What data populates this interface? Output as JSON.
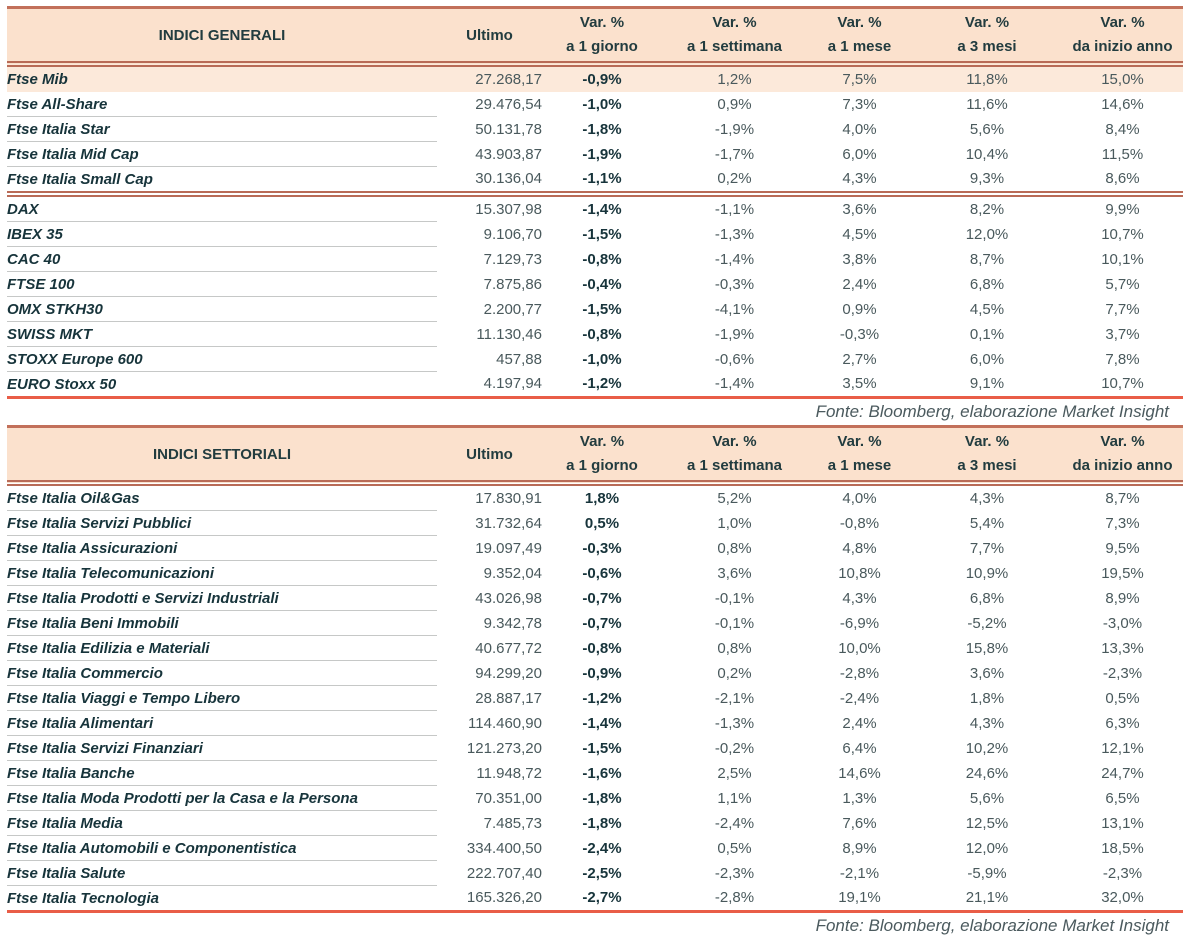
{
  "colors": {
    "header_bg": "#fbe1cd",
    "highlight_row_bg": "#fce9da",
    "rule_salmon": "#b96b57",
    "rule_orange_red": "#e95d47",
    "text_dark_teal": "#17343b",
    "text_gray_teal": "#49595c"
  },
  "tables": [
    {
      "title": "INDICI GENERALI",
      "col_ultimo": "Ultimo",
      "var_cols": [
        {
          "l1": "Var. %",
          "l2": "a 1 giorno"
        },
        {
          "l1": "Var. %",
          "l2": "a 1 settimana"
        },
        {
          "l1": "Var. %",
          "l2": "a 1 mese"
        },
        {
          "l1": "Var. %",
          "l2": "a 3 mesi"
        },
        {
          "l1": "Var. %",
          "l2": "da inizio anno"
        }
      ],
      "highlight_first_row": true,
      "separator_after_index": 4,
      "rows": [
        {
          "name": "Ftse Mib",
          "ultimo": "27.268,17",
          "d1": "-0,9%",
          "w1": "1,2%",
          "m1": "7,5%",
          "m3": "11,8%",
          "ytd": "15,0%"
        },
        {
          "name": "Ftse All-Share",
          "ultimo": "29.476,54",
          "d1": "-1,0%",
          "w1": "0,9%",
          "m1": "7,3%",
          "m3": "11,6%",
          "ytd": "14,6%"
        },
        {
          "name": "Ftse Italia Star",
          "ultimo": "50.131,78",
          "d1": "-1,8%",
          "w1": "-1,9%",
          "m1": "4,0%",
          "m3": "5,6%",
          "ytd": "8,4%"
        },
        {
          "name": "Ftse Italia Mid Cap",
          "ultimo": "43.903,87",
          "d1": "-1,9%",
          "w1": "-1,7%",
          "m1": "6,0%",
          "m3": "10,4%",
          "ytd": "11,5%"
        },
        {
          "name": "Ftse Italia Small Cap",
          "ultimo": "30.136,04",
          "d1": "-1,1%",
          "w1": "0,2%",
          "m1": "4,3%",
          "m3": "9,3%",
          "ytd": "8,6%"
        },
        {
          "name": "DAX",
          "ultimo": "15.307,98",
          "d1": "-1,4%",
          "w1": "-1,1%",
          "m1": "3,6%",
          "m3": "8,2%",
          "ytd": "9,9%"
        },
        {
          "name": "IBEX 35",
          "ultimo": "9.106,70",
          "d1": "-1,5%",
          "w1": "-1,3%",
          "m1": "4,5%",
          "m3": "12,0%",
          "ytd": "10,7%"
        },
        {
          "name": "CAC 40",
          "ultimo": "7.129,73",
          "d1": "-0,8%",
          "w1": "-1,4%",
          "m1": "3,8%",
          "m3": "8,7%",
          "ytd": "10,1%"
        },
        {
          "name": "FTSE 100",
          "ultimo": "7.875,86",
          "d1": "-0,4%",
          "w1": "-0,3%",
          "m1": "2,4%",
          "m3": "6,8%",
          "ytd": "5,7%"
        },
        {
          "name": "OMX STKH30",
          "ultimo": "2.200,77",
          "d1": "-1,5%",
          "w1": "-4,1%",
          "m1": "0,9%",
          "m3": "4,5%",
          "ytd": "7,7%"
        },
        {
          "name": "SWISS MKT",
          "ultimo": "11.130,46",
          "d1": "-0,8%",
          "w1": "-1,9%",
          "m1": "-0,3%",
          "m3": "0,1%",
          "ytd": "3,7%"
        },
        {
          "name": "STOXX Europe 600",
          "ultimo": "457,88",
          "d1": "-1,0%",
          "w1": "-0,6%",
          "m1": "2,7%",
          "m3": "6,0%",
          "ytd": "7,8%"
        },
        {
          "name": "EURO Stoxx 50",
          "ultimo": "4.197,94",
          "d1": "-1,2%",
          "w1": "-1,4%",
          "m1": "3,5%",
          "m3": "9,1%",
          "ytd": "10,7%"
        }
      ],
      "source": "Fonte: Bloomberg, elaborazione Market Insight"
    },
    {
      "title": "INDICI SETTORIALI",
      "col_ultimo": "Ultimo",
      "var_cols": [
        {
          "l1": "Var. %",
          "l2": "a 1 giorno"
        },
        {
          "l1": "Var. %",
          "l2": "a 1 settimana"
        },
        {
          "l1": "Var. %",
          "l2": "a 1 mese"
        },
        {
          "l1": "Var. %",
          "l2": "a 3 mesi"
        },
        {
          "l1": "Var. %",
          "l2": "da inizio anno"
        }
      ],
      "highlight_first_row": false,
      "separator_after_index": null,
      "rows": [
        {
          "name": "Ftse Italia Oil&Gas",
          "ultimo": "17.830,91",
          "d1": "1,8%",
          "w1": "5,2%",
          "m1": "4,0%",
          "m3": "4,3%",
          "ytd": "8,7%"
        },
        {
          "name": "Ftse Italia Servizi Pubblici",
          "ultimo": "31.732,64",
          "d1": "0,5%",
          "w1": "1,0%",
          "m1": "-0,8%",
          "m3": "5,4%",
          "ytd": "7,3%"
        },
        {
          "name": "Ftse Italia Assicurazioni",
          "ultimo": "19.097,49",
          "d1": "-0,3%",
          "w1": "0,8%",
          "m1": "4,8%",
          "m3": "7,7%",
          "ytd": "9,5%"
        },
        {
          "name": "Ftse Italia Telecomunicazioni",
          "ultimo": "9.352,04",
          "d1": "-0,6%",
          "w1": "3,6%",
          "m1": "10,8%",
          "m3": "10,9%",
          "ytd": "19,5%"
        },
        {
          "name": "Ftse Italia Prodotti e Servizi Industriali",
          "ultimo": "43.026,98",
          "d1": "-0,7%",
          "w1": "-0,1%",
          "m1": "4,3%",
          "m3": "6,8%",
          "ytd": "8,9%"
        },
        {
          "name": "Ftse Italia Beni Immobili",
          "ultimo": "9.342,78",
          "d1": "-0,7%",
          "w1": "-0,1%",
          "m1": "-6,9%",
          "m3": "-5,2%",
          "ytd": "-3,0%"
        },
        {
          "name": "Ftse Italia Edilizia e Materiali",
          "ultimo": "40.677,72",
          "d1": "-0,8%",
          "w1": "0,8%",
          "m1": "10,0%",
          "m3": "15,8%",
          "ytd": "13,3%"
        },
        {
          "name": "Ftse Italia Commercio",
          "ultimo": "94.299,20",
          "d1": "-0,9%",
          "w1": "0,2%",
          "m1": "-2,8%",
          "m3": "3,6%",
          "ytd": "-2,3%"
        },
        {
          "name": "Ftse Italia Viaggi e Tempo Libero",
          "ultimo": "28.887,17",
          "d1": "-1,2%",
          "w1": "-2,1%",
          "m1": "-2,4%",
          "m3": "1,8%",
          "ytd": "0,5%"
        },
        {
          "name": "Ftse Italia Alimentari",
          "ultimo": "114.460,90",
          "d1": "-1,4%",
          "w1": "-1,3%",
          "m1": "2,4%",
          "m3": "4,3%",
          "ytd": "6,3%"
        },
        {
          "name": "Ftse Italia Servizi Finanziari",
          "ultimo": "121.273,20",
          "d1": "-1,5%",
          "w1": "-0,2%",
          "m1": "6,4%",
          "m3": "10,2%",
          "ytd": "12,1%"
        },
        {
          "name": "Ftse Italia Banche",
          "ultimo": "11.948,72",
          "d1": "-1,6%",
          "w1": "2,5%",
          "m1": "14,6%",
          "m3": "24,6%",
          "ytd": "24,7%"
        },
        {
          "name": "Ftse Italia Moda Prodotti per la Casa e la Persona",
          "ultimo": "70.351,00",
          "d1": "-1,8%",
          "w1": "1,1%",
          "m1": "1,3%",
          "m3": "5,6%",
          "ytd": "6,5%"
        },
        {
          "name": "Ftse Italia Media",
          "ultimo": "7.485,73",
          "d1": "-1,8%",
          "w1": "-2,4%",
          "m1": "7,6%",
          "m3": "12,5%",
          "ytd": "13,1%"
        },
        {
          "name": "Ftse Italia Automobili e Componentistica",
          "ultimo": "334.400,50",
          "d1": "-2,4%",
          "w1": "0,5%",
          "m1": "8,9%",
          "m3": "12,0%",
          "ytd": "18,5%"
        },
        {
          "name": "Ftse Italia Salute",
          "ultimo": "222.707,40",
          "d1": "-2,5%",
          "w1": "-2,3%",
          "m1": "-2,1%",
          "m3": "-5,9%",
          "ytd": "-2,3%"
        },
        {
          "name": "Ftse Italia Tecnologia",
          "ultimo": "165.326,20",
          "d1": "-2,7%",
          "w1": "-2,8%",
          "m1": "19,1%",
          "m3": "21,1%",
          "ytd": "32,0%"
        }
      ],
      "source": "Fonte: Bloomberg, elaborazione Market Insight"
    }
  ]
}
